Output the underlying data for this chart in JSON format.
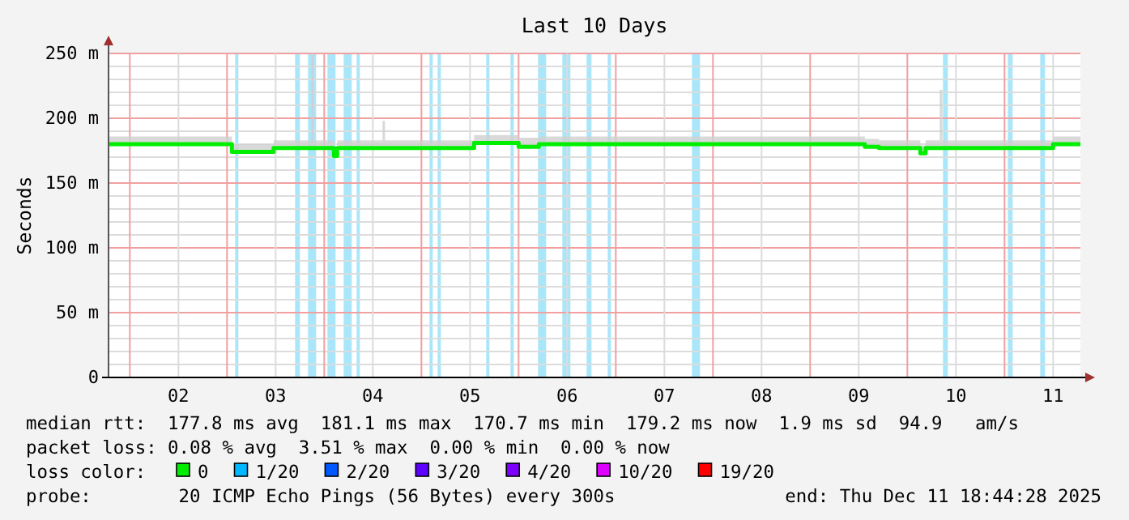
{
  "chart_data": {
    "type": "step",
    "title": "Last 10 Days",
    "ylabel": "Seconds",
    "x": [
      "2025-12-01T18:44",
      "2025-12-03T00:24",
      "2025-12-03T01:12",
      "2025-12-03T10:48",
      "2025-12-03T11:30",
      "2025-12-03T20:48",
      "2025-12-03T21:30",
      "2025-12-04T01:36",
      "2025-12-04T02:24",
      "2025-12-04T03:12",
      "2025-12-04T14:24",
      "2025-12-04T15:00",
      "2025-12-05T12:00",
      "2025-12-05T13:00",
      "2025-12-05T23:12",
      "2025-12-06T00:00",
      "2025-12-06T04:00",
      "2025-12-06T05:00",
      "2025-12-09T12:48",
      "2025-12-09T13:30",
      "2025-12-09T16:00",
      "2025-12-09T17:00",
      "2025-12-10T02:24",
      "2025-12-10T03:12",
      "2025-12-10T04:30",
      "2025-12-10T08:00",
      "2025-12-10T08:40",
      "2025-12-11T11:12",
      "2025-12-11T12:00",
      "2025-12-11T18:44"
    ],
    "series": [
      {
        "name": "0",
        "color": "#00ee00",
        "values": [
          180,
          180,
          174,
          174,
          177,
          177,
          177,
          177,
          171,
          177,
          177,
          177,
          177,
          181,
          181,
          178,
          178,
          180,
          180,
          178,
          178,
          177,
          177,
          173,
          177,
          177,
          177,
          177,
          180,
          180
        ],
        "lower": [
          180,
          180,
          174,
          174,
          177,
          177,
          177,
          177,
          171,
          177,
          177,
          177,
          177,
          181,
          181,
          178,
          178,
          180,
          180,
          178,
          178,
          177,
          177,
          173,
          177,
          177,
          177,
          177,
          180,
          180
        ],
        "upper": [
          186,
          186,
          180,
          180,
          183,
          250,
          183,
          183,
          177,
          183,
          198,
          183,
          183,
          187,
          187,
          185,
          185,
          186,
          186,
          184,
          184,
          183,
          183,
          179,
          183,
          222,
          183,
          183,
          186,
          186
        ]
      },
      {
        "name": "1/20",
        "color": "#00b8ff",
        "values": [
          null,
          null,
          null,
          null,
          null,
          null,
          null,
          null,
          null,
          null,
          null,
          null,
          null,
          null,
          null,
          null,
          null,
          null,
          null,
          null,
          null,
          null,
          null,
          null,
          null,
          null,
          null,
          null,
          null,
          null
        ]
      },
      {
        "name": "2/20",
        "color": "#0059ff",
        "values": [
          null,
          null,
          null,
          null,
          null,
          null,
          null,
          null,
          null,
          null,
          null,
          null,
          null,
          null,
          null,
          null,
          null,
          null,
          null,
          null,
          null,
          null,
          null,
          null,
          null,
          null,
          null,
          null,
          null,
          null
        ]
      },
      {
        "name": "3/20",
        "color": "#5e00ff",
        "values": [
          null,
          null,
          null,
          null,
          null,
          null,
          null,
          null,
          null,
          null,
          null,
          null,
          null,
          null,
          null,
          null,
          null,
          null,
          null,
          null,
          null,
          null,
          null,
          null,
          null,
          null,
          null,
          null,
          null,
          null
        ]
      },
      {
        "name": "4/20",
        "color": "#7e00ff",
        "values": [
          null,
          null,
          null,
          null,
          null,
          null,
          null,
          null,
          null,
          null,
          null,
          null,
          null,
          null,
          null,
          null,
          null,
          null,
          null,
          null,
          null,
          null,
          null,
          null,
          null,
          null,
          null,
          null,
          null,
          null
        ]
      },
      {
        "name": "10/20",
        "color": "#dd00ff",
        "values": [
          null,
          null,
          null,
          null,
          null,
          null,
          null,
          null,
          null,
          null,
          null,
          null,
          null,
          null,
          null,
          null,
          null,
          null,
          null,
          null,
          null,
          null,
          null,
          null,
          null,
          null,
          null,
          null,
          null,
          null
        ]
      },
      {
        "name": "19/20",
        "color": "#ff0000",
        "values": [
          null,
          null,
          null,
          null,
          null,
          null,
          null,
          null,
          null,
          null,
          null,
          null,
          null,
          null,
          null,
          null,
          null,
          null,
          null,
          null,
          null,
          null,
          null,
          null,
          null,
          null,
          null,
          null,
          null,
          null
        ]
      }
    ],
    "bands": [
      {
        "axis": "x",
        "from": "2025-12-03T02:00",
        "to": "2025-12-03T02:48",
        "color": "#aae6fa"
      },
      {
        "axis": "x",
        "from": "2025-12-03T16:48",
        "to": "2025-12-03T18:00",
        "color": "#aae6fa"
      },
      {
        "axis": "x",
        "from": "2025-12-03T20:00",
        "to": "2025-12-03T22:00",
        "color": "#aae6fa"
      },
      {
        "axis": "x",
        "from": "2025-12-04T00:48",
        "to": "2025-12-04T02:48",
        "color": "#aae6fa"
      },
      {
        "axis": "x",
        "from": "2025-12-04T04:48",
        "to": "2025-12-04T06:48",
        "color": "#aae6fa"
      },
      {
        "axis": "x",
        "from": "2025-12-04T08:00",
        "to": "2025-12-04T08:48",
        "color": "#aae6fa"
      },
      {
        "axis": "x",
        "from": "2025-12-05T02:00",
        "to": "2025-12-05T02:48",
        "color": "#aae6fa"
      },
      {
        "axis": "x",
        "from": "2025-12-05T04:00",
        "to": "2025-12-05T04:48",
        "color": "#aae6fa"
      },
      {
        "axis": "x",
        "from": "2025-12-05T16:00",
        "to": "2025-12-05T16:48",
        "color": "#aae6fa"
      },
      {
        "axis": "x",
        "from": "2025-12-05T22:00",
        "to": "2025-12-05T22:48",
        "color": "#aae6fa"
      },
      {
        "axis": "x",
        "from": "2025-12-06T04:48",
        "to": "2025-12-06T06:48",
        "color": "#aae6fa"
      },
      {
        "axis": "x",
        "from": "2025-12-06T10:48",
        "to": "2025-12-06T12:48",
        "color": "#aae6fa"
      },
      {
        "axis": "x",
        "from": "2025-12-06T16:48",
        "to": "2025-12-06T18:00",
        "color": "#aae6fa"
      },
      {
        "axis": "x",
        "from": "2025-12-06T22:00",
        "to": "2025-12-06T22:48",
        "color": "#aae6fa"
      },
      {
        "axis": "x",
        "from": "2025-12-07T18:48",
        "to": "2025-12-07T20:48",
        "color": "#aae6fa"
      },
      {
        "axis": "x",
        "from": "2025-12-10T08:48",
        "to": "2025-12-10T10:00",
        "color": "#aae6fa"
      },
      {
        "axis": "x",
        "from": "2025-12-11T00:48",
        "to": "2025-12-11T02:00",
        "color": "#aae6fa"
      },
      {
        "axis": "x",
        "from": "2025-12-11T08:48",
        "to": "2025-12-11T10:00",
        "color": "#aae6fa"
      }
    ],
    "xlim": [
      "2025-12-01T18:44",
      "2025-12-11T18:44"
    ],
    "xticks": [
      {
        "value": "2025-12-02T00:00",
        "label": null
      },
      {
        "value": "2025-12-02T12:00",
        "label": "02"
      },
      {
        "value": "2025-12-03T00:00",
        "label": null
      },
      {
        "value": "2025-12-03T12:00",
        "label": "03"
      },
      {
        "value": "2025-12-04T00:00",
        "label": null
      },
      {
        "value": "2025-12-04T12:00",
        "label": "04"
      },
      {
        "value": "2025-12-05T00:00",
        "label": null
      },
      {
        "value": "2025-12-05T12:00",
        "label": "05"
      },
      {
        "value": "2025-12-06T00:00",
        "label": null
      },
      {
        "value": "2025-12-06T12:00",
        "label": "06"
      },
      {
        "value": "2025-12-07T00:00",
        "label": null
      },
      {
        "value": "2025-12-07T12:00",
        "label": "07"
      },
      {
        "value": "2025-12-08T00:00",
        "label": null
      },
      {
        "value": "2025-12-08T12:00",
        "label": "08"
      },
      {
        "value": "2025-12-09T00:00",
        "label": null
      },
      {
        "value": "2025-12-09T12:00",
        "label": "09"
      },
      {
        "value": "2025-12-10T00:00",
        "label": null
      },
      {
        "value": "2025-12-10T12:00",
        "label": "10"
      },
      {
        "value": "2025-12-11T00:00",
        "label": null
      },
      {
        "value": "2025-12-11T12:00",
        "label": "11"
      }
    ],
    "ylim": [
      0,
      250
    ],
    "yticks": [
      {
        "value": 0,
        "label": "0"
      },
      {
        "value": 10,
        "label": null
      },
      {
        "value": 20,
        "label": null
      },
      {
        "value": 30,
        "label": null
      },
      {
        "value": 40,
        "label": null
      },
      {
        "value": 50,
        "label": "50 m"
      },
      {
        "value": 60,
        "label": null
      },
      {
        "value": 70,
        "label": null
      },
      {
        "value": 80,
        "label": null
      },
      {
        "value": 90,
        "label": null
      },
      {
        "value": 100,
        "label": "100 m"
      },
      {
        "value": 110,
        "label": null
      },
      {
        "value": 120,
        "label": null
      },
      {
        "value": 130,
        "label": null
      },
      {
        "value": 140,
        "label": null
      },
      {
        "value": 150,
        "label": "150 m"
      },
      {
        "value": 160,
        "label": null
      },
      {
        "value": 170,
        "label": null
      },
      {
        "value": 180,
        "label": null
      },
      {
        "value": 190,
        "label": null
      },
      {
        "value": 200,
        "label": "200 m"
      },
      {
        "value": 210,
        "label": null
      },
      {
        "value": 220,
        "label": null
      },
      {
        "value": 230,
        "label": null
      },
      {
        "value": 240,
        "label": null
      },
      {
        "value": 250,
        "label": "250 m"
      }
    ],
    "grid": true,
    "legend": "bottom",
    "legend_title": "loss color:",
    "annotations": [
      "median rtt:  177.8 ms avg  181.1 ms max  170.7 ms min  179.2 ms now  1.9 ms sd  94.9   am/s",
      "packet loss: 0.08 % avg  3.51 % max  0.00 % min  0.00 % now",
      "probe:        20 ICMP Echo Pings (56 Bytes) every 300s",
      "end: Thu Dec 11 18:44:28 2025"
    ]
  }
}
